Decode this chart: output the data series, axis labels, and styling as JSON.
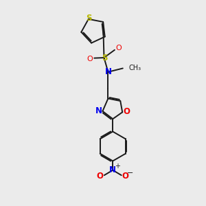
{
  "background_color": "#ebebeb",
  "bond_color": "#1a1a1a",
  "sulfur_color": "#b8b800",
  "nitrogen_color": "#0000ee",
  "oxygen_color": "#ee0000",
  "line_width": 1.4,
  "fig_width": 3.0,
  "fig_height": 3.0,
  "dpi": 100,
  "xlim": [
    0,
    10
  ],
  "ylim": [
    0,
    10
  ]
}
